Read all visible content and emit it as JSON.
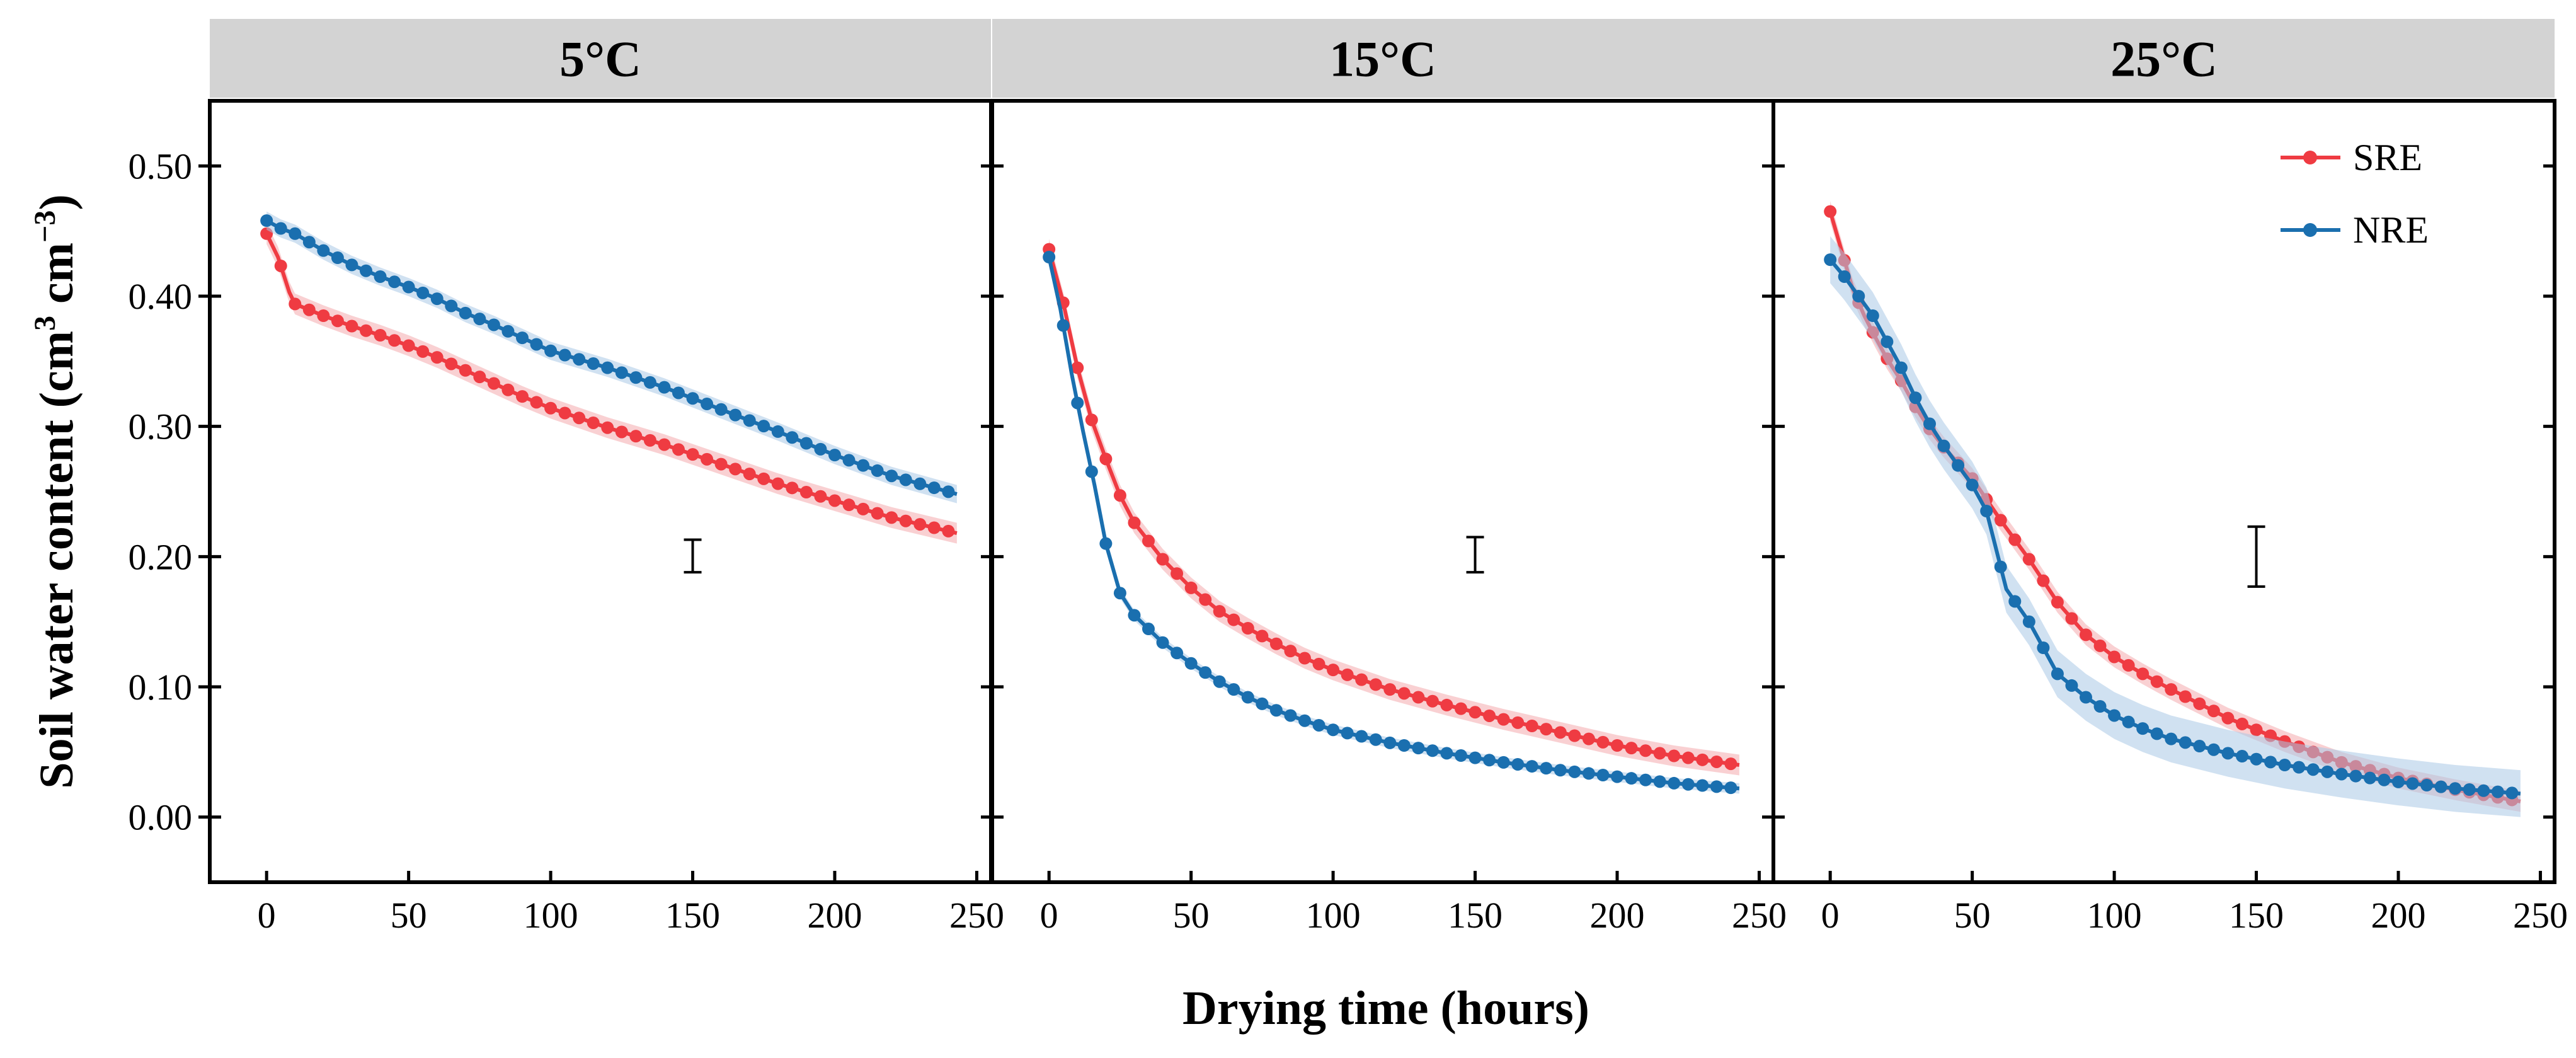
{
  "chart_data": {
    "type": "line",
    "xlabel": "Drying time (hours)",
    "ylabel_main": "Soil water content (cm",
    "ylabel_sup1": "3",
    "ylabel_mid": " cm",
    "ylabel_sup2": "−3",
    "ylabel_end": ")",
    "xlim": [
      -20,
      255
    ],
    "ylim": [
      -0.05,
      0.55
    ],
    "xticks": [
      0,
      50,
      100,
      150,
      200,
      250
    ],
    "xtick_labels": [
      "0",
      "50",
      "100",
      "150",
      "200",
      "250"
    ],
    "yticks": [
      0.0,
      0.1,
      0.2,
      0.3,
      0.4,
      0.5
    ],
    "ytick_labels": [
      "0.00",
      "0.10",
      "0.20",
      "0.30",
      "0.40",
      "0.50"
    ],
    "legend": {
      "position": "top-right of last panel",
      "entries": [
        {
          "name": "SRE",
          "color": "#ef3b42"
        },
        {
          "name": "NRE",
          "color": "#1a6faf"
        }
      ]
    },
    "colors": {
      "SRE": "#ef3b42",
      "NRE": "#1a6faf",
      "SRE_band": "#f4a9ad",
      "NRE_band": "#a9c9e6",
      "strip": "#d3d3d3"
    },
    "panels": [
      {
        "title": "5°C",
        "errorbar": {
          "x": 150,
          "low": 0.188,
          "high": 0.213
        },
        "series": [
          {
            "name": "SRE",
            "band": 0.008,
            "points": [
              [
                0,
                0.448
              ],
              [
                4,
                0.43
              ],
              [
                8,
                0.403
              ],
              [
                10,
                0.394
              ],
              [
                20,
                0.385
              ],
              [
                30,
                0.377
              ],
              [
                40,
                0.37
              ],
              [
                50,
                0.362
              ],
              [
                60,
                0.353
              ],
              [
                70,
                0.343
              ],
              [
                80,
                0.333
              ],
              [
                90,
                0.323
              ],
              [
                100,
                0.314
              ],
              [
                120,
                0.299
              ],
              [
                140,
                0.286
              ],
              [
                160,
                0.271
              ],
              [
                180,
                0.256
              ],
              [
                200,
                0.243
              ],
              [
                220,
                0.23
              ],
              [
                243,
                0.218
              ]
            ]
          },
          {
            "name": "NRE",
            "band": 0.007,
            "points": [
              [
                0,
                0.458
              ],
              [
                5,
                0.452
              ],
              [
                10,
                0.448
              ],
              [
                20,
                0.435
              ],
              [
                30,
                0.424
              ],
              [
                40,
                0.415
              ],
              [
                50,
                0.407
              ],
              [
                60,
                0.398
              ],
              [
                70,
                0.387
              ],
              [
                80,
                0.378
              ],
              [
                90,
                0.368
              ],
              [
                100,
                0.358
              ],
              [
                120,
                0.345
              ],
              [
                140,
                0.33
              ],
              [
                160,
                0.313
              ],
              [
                180,
                0.296
              ],
              [
                200,
                0.278
              ],
              [
                220,
                0.262
              ],
              [
                243,
                0.248
              ]
            ]
          }
        ]
      },
      {
        "title": "15°C",
        "errorbar": {
          "x": 150,
          "low": 0.188,
          "high": 0.215
        },
        "series": [
          {
            "name": "SRE",
            "band": 0.008,
            "points": [
              [
                0,
                0.436
              ],
              [
                5,
                0.395
              ],
              [
                10,
                0.345
              ],
              [
                15,
                0.305
              ],
              [
                20,
                0.275
              ],
              [
                25,
                0.247
              ],
              [
                30,
                0.226
              ],
              [
                40,
                0.198
              ],
              [
                50,
                0.176
              ],
              [
                60,
                0.158
              ],
              [
                70,
                0.145
              ],
              [
                80,
                0.133
              ],
              [
                90,
                0.122
              ],
              [
                100,
                0.113
              ],
              [
                120,
                0.098
              ],
              [
                140,
                0.086
              ],
              [
                160,
                0.075
              ],
              [
                180,
                0.065
              ],
              [
                200,
                0.055
              ],
              [
                220,
                0.047
              ],
              [
                243,
                0.04
              ]
            ]
          },
          {
            "name": "NRE",
            "band": 0.004,
            "points": [
              [
                0,
                0.43
              ],
              [
                4,
                0.39
              ],
              [
                8,
                0.34
              ],
              [
                12,
                0.296
              ],
              [
                16,
                0.255
              ],
              [
                20,
                0.21
              ],
              [
                25,
                0.172
              ],
              [
                30,
                0.155
              ],
              [
                40,
                0.134
              ],
              [
                50,
                0.118
              ],
              [
                60,
                0.104
              ],
              [
                70,
                0.092
              ],
              [
                80,
                0.082
              ],
              [
                90,
                0.074
              ],
              [
                100,
                0.067
              ],
              [
                120,
                0.057
              ],
              [
                140,
                0.049
              ],
              [
                160,
                0.042
              ],
              [
                180,
                0.036
              ],
              [
                200,
                0.031
              ],
              [
                220,
                0.026
              ],
              [
                243,
                0.022
              ]
            ]
          }
        ]
      },
      {
        "title": "25°C",
        "errorbar": {
          "x": 150,
          "low": 0.177,
          "high": 0.223
        },
        "series": [
          {
            "name": "SRE",
            "band": 0.008,
            "points": [
              [
                0,
                0.465
              ],
              [
                4,
                0.435
              ],
              [
                8,
                0.405
              ],
              [
                12,
                0.385
              ],
              [
                16,
                0.368
              ],
              [
                20,
                0.352
              ],
              [
                25,
                0.335
              ],
              [
                30,
                0.315
              ],
              [
                35,
                0.298
              ],
              [
                40,
                0.284
              ],
              [
                50,
                0.26
              ],
              [
                60,
                0.228
              ],
              [
                70,
                0.198
              ],
              [
                80,
                0.165
              ],
              [
                90,
                0.14
              ],
              [
                100,
                0.123
              ],
              [
                110,
                0.11
              ],
              [
                120,
                0.098
              ],
              [
                140,
                0.076
              ],
              [
                160,
                0.058
              ],
              [
                180,
                0.042
              ],
              [
                200,
                0.03
              ],
              [
                220,
                0.021
              ],
              [
                243,
                0.012
              ]
            ]
          },
          {
            "name": "NRE",
            "band": 0.018,
            "points": [
              [
                0,
                0.428
              ],
              [
                5,
                0.415
              ],
              [
                10,
                0.4
              ],
              [
                15,
                0.385
              ],
              [
                20,
                0.365
              ],
              [
                25,
                0.345
              ],
              [
                30,
                0.322
              ],
              [
                35,
                0.302
              ],
              [
                40,
                0.285
              ],
              [
                50,
                0.255
              ],
              [
                55,
                0.235
              ],
              [
                62,
                0.175
              ],
              [
                70,
                0.15
              ],
              [
                80,
                0.11
              ],
              [
                90,
                0.092
              ],
              [
                100,
                0.078
              ],
              [
                110,
                0.068
              ],
              [
                120,
                0.06
              ],
              [
                140,
                0.049
              ],
              [
                160,
                0.04
              ],
              [
                180,
                0.033
              ],
              [
                200,
                0.027
              ],
              [
                220,
                0.022
              ],
              [
                243,
                0.018
              ]
            ]
          }
        ]
      }
    ]
  }
}
